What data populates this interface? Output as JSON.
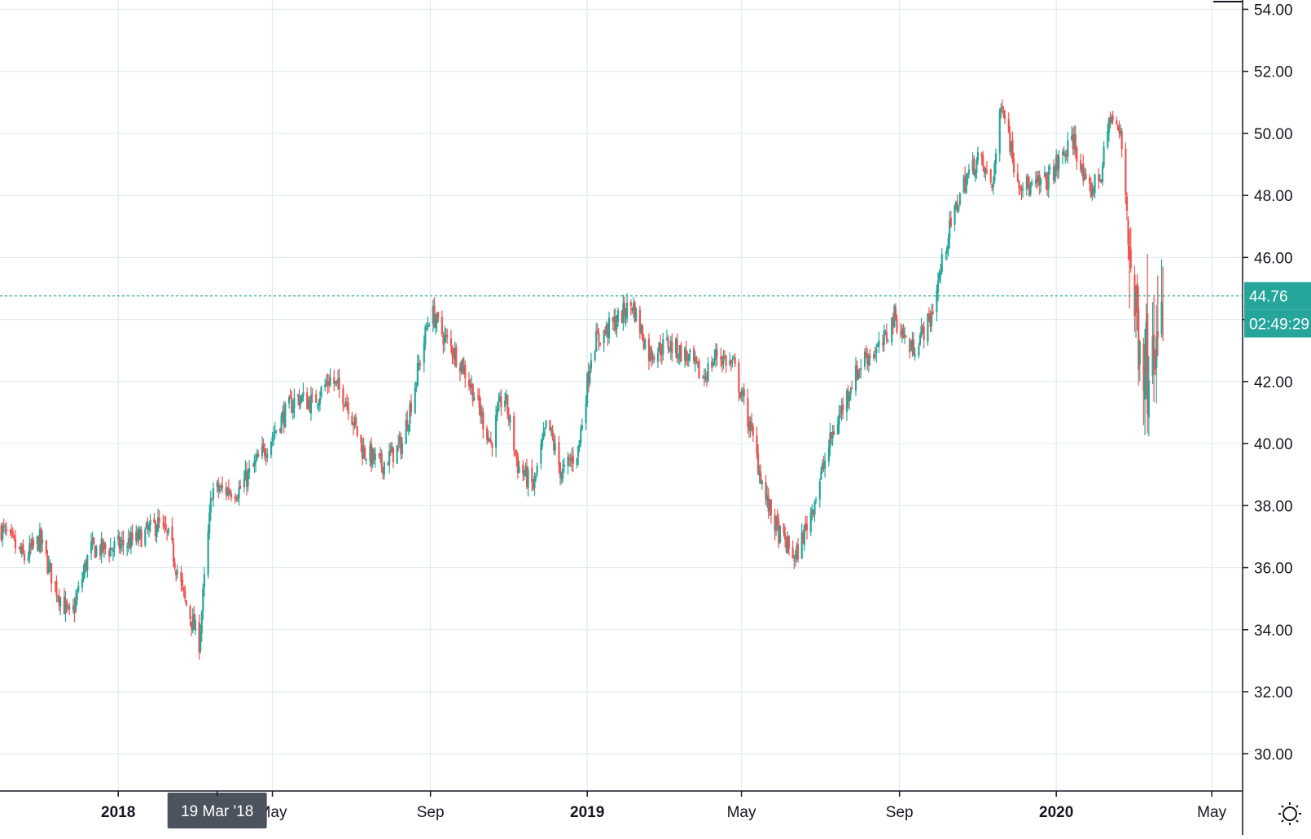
{
  "colors": {
    "up": "#26a69a",
    "down": "#ef5350",
    "grid": "#e1ecf2",
    "axis": "#131722",
    "last_price_line": "#26a69a",
    "badge": "#26a69a",
    "crosshair_label_bg": "#4c525e"
  },
  "toolbar": {
    "settings_icon": "gear-icon"
  },
  "crosshair": {
    "date_label": "19 Mar '18",
    "x_date": "2018-03-19"
  },
  "last_price": {
    "value": "44.76",
    "countdown": "02:49:29"
  },
  "chart_data": {
    "type": "candlestick",
    "title": "",
    "xlabel": "",
    "ylabel": "",
    "ylim": [
      28.8,
      54.3
    ],
    "xlim": [
      "2017-10-01",
      "2020-05-25"
    ],
    "grid": true,
    "y_ticks": [
      "30.00",
      "32.00",
      "34.00",
      "36.00",
      "38.00",
      "40.00",
      "42.00",
      "44.00",
      "46.00",
      "48.00",
      "50.00",
      "52.00",
      "54.00"
    ],
    "x_ticks": [
      {
        "label": "2018",
        "date": "2018-01-01",
        "bold": true
      },
      {
        "label": "May",
        "date": "2018-05-01",
        "bold": false
      },
      {
        "label": "Sep",
        "date": "2018-09-01",
        "bold": false
      },
      {
        "label": "2019",
        "date": "2019-01-01",
        "bold": true
      },
      {
        "label": "May",
        "date": "2019-05-01",
        "bold": false
      },
      {
        "label": "Sep",
        "date": "2019-09-01",
        "bold": false
      },
      {
        "label": "2020",
        "date": "2020-01-01",
        "bold": true
      },
      {
        "label": "May",
        "date": "2020-05-01",
        "bold": false
      }
    ],
    "close_path": [
      [
        "2017-10-01",
        37.3
      ],
      [
        "2017-10-20",
        36.3
      ],
      [
        "2017-11-01",
        36.9
      ],
      [
        "2017-11-12",
        35.5
      ],
      [
        "2017-11-25",
        34.3
      ],
      [
        "2017-12-10",
        36.6
      ],
      [
        "2017-12-25",
        36.6
      ],
      [
        "2018-01-15",
        36.9
      ],
      [
        "2018-02-01",
        37.4
      ],
      [
        "2018-02-10",
        36.9
      ],
      [
        "2018-02-22",
        34.9
      ],
      [
        "2018-03-05",
        33.6
      ],
      [
        "2018-03-15",
        38.5
      ],
      [
        "2018-04-05",
        38.5
      ],
      [
        "2018-04-25",
        39.8
      ],
      [
        "2018-05-08",
        40.8
      ],
      [
        "2018-05-20",
        41.5
      ],
      [
        "2018-06-01",
        41.3
      ],
      [
        "2018-06-15",
        42.1
      ],
      [
        "2018-06-28",
        41.4
      ],
      [
        "2018-07-10",
        39.8
      ],
      [
        "2018-07-25",
        39.3
      ],
      [
        "2018-08-10",
        40.0
      ],
      [
        "2018-08-22",
        42.3
      ],
      [
        "2018-09-01",
        44.3
      ],
      [
        "2018-09-12",
        43.4
      ],
      [
        "2018-09-25",
        42.6
      ],
      [
        "2018-10-05",
        41.6
      ],
      [
        "2018-10-18",
        40.0
      ],
      [
        "2018-10-28",
        41.7
      ],
      [
        "2018-11-08",
        39.3
      ],
      [
        "2018-11-20",
        38.6
      ],
      [
        "2018-12-01",
        40.7
      ],
      [
        "2018-12-12",
        39.0
      ],
      [
        "2018-12-25",
        39.8
      ],
      [
        "2019-01-05",
        43.2
      ],
      [
        "2019-01-20",
        43.8
      ],
      [
        "2019-02-05",
        44.5
      ],
      [
        "2019-02-18",
        42.9
      ],
      [
        "2019-03-05",
        43.2
      ],
      [
        "2019-03-20",
        42.8
      ],
      [
        "2019-04-01",
        42.1
      ],
      [
        "2019-04-12",
        42.9
      ],
      [
        "2019-04-25",
        42.5
      ],
      [
        "2019-05-08",
        40.5
      ],
      [
        "2019-05-20",
        38.2
      ],
      [
        "2019-05-30",
        37.1
      ],
      [
        "2019-06-12",
        36.3
      ],
      [
        "2019-06-25",
        37.9
      ],
      [
        "2019-07-10",
        40.2
      ],
      [
        "2019-07-25",
        41.9
      ],
      [
        "2019-08-05",
        42.8
      ],
      [
        "2019-08-18",
        43.1
      ],
      [
        "2019-08-28",
        44.1
      ],
      [
        "2019-09-10",
        43.0
      ],
      [
        "2019-09-25",
        44.0
      ],
      [
        "2019-10-08",
        46.6
      ],
      [
        "2019-10-20",
        48.3
      ],
      [
        "2019-11-01",
        49.2
      ],
      [
        "2019-11-12",
        48.3
      ],
      [
        "2019-11-20",
        51.1
      ],
      [
        "2019-12-01",
        48.6
      ],
      [
        "2019-12-12",
        48.2
      ],
      [
        "2019-12-25",
        48.5
      ],
      [
        "2020-01-05",
        49.2
      ],
      [
        "2020-01-15",
        49.8
      ],
      [
        "2020-01-25",
        48.0
      ],
      [
        "2020-02-05",
        48.7
      ],
      [
        "2020-02-12",
        50.6
      ],
      [
        "2020-02-20",
        49.9
      ],
      [
        "2020-02-25",
        47.6
      ],
      [
        "2020-03-01",
        44.6
      ],
      [
        "2020-03-06",
        43.6
      ],
      [
        "2020-03-12",
        42.5
      ],
      [
        "2020-03-16",
        44.8
      ],
      [
        "2020-03-20",
        42.4
      ],
      [
        "2020-03-24",
        44.76
      ]
    ]
  }
}
